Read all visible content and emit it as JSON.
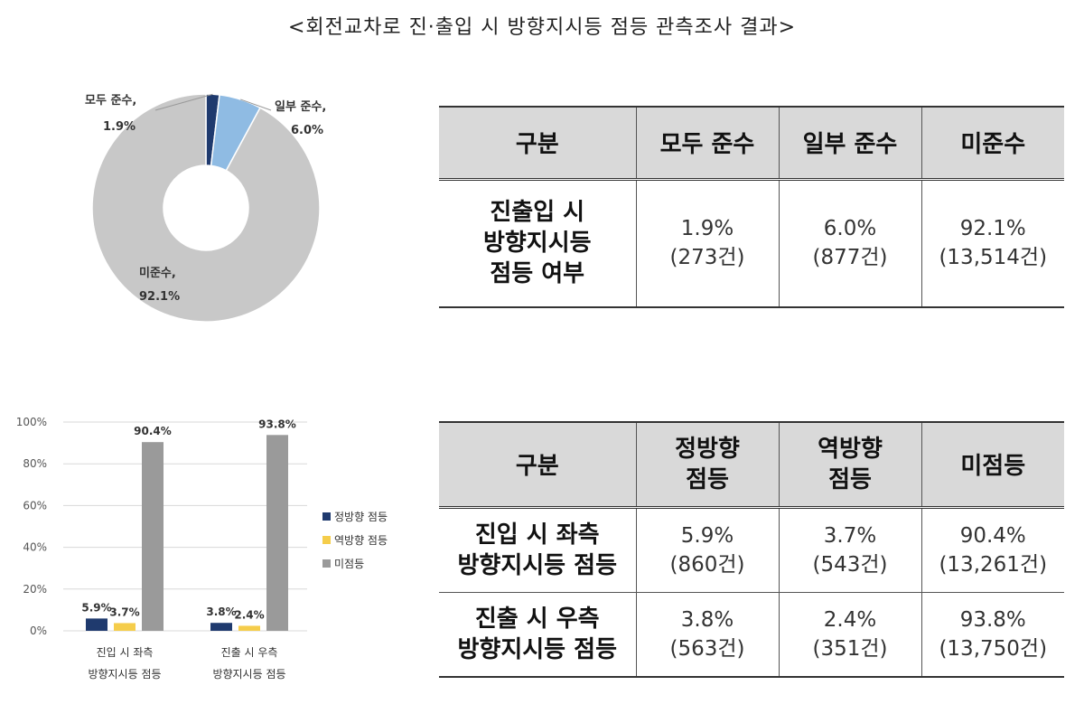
{
  "title": "<회전교차로 진·출입 시 방향지시등 점등 관측조사 결과>",
  "chart_data": [
    {
      "type": "pie",
      "slices": [
        {
          "label": "모두 준수,",
          "pct_label": "1.9%",
          "value": 1.9,
          "color": "#1f3a6e"
        },
        {
          "label": "일부 준수,",
          "pct_label": "6.0%",
          "value": 6.0,
          "color": "#8fbbe3"
        },
        {
          "label": "미준수,",
          "pct_label": "92.1%",
          "value": 92.1,
          "color": "#c8c8c8"
        }
      ],
      "donut": true
    },
    {
      "type": "bar",
      "categories": [
        {
          "line1": "진입 시 좌측",
          "line2": "방향지시등 점등"
        },
        {
          "line1": "진출 시 우측",
          "line2": "방향지시등 점등"
        }
      ],
      "series": [
        {
          "name": "정방향 점등",
          "values": [
            5.9,
            3.8
          ],
          "labels": [
            "5.9%",
            "3.8%"
          ],
          "color": "#1f3a6e"
        },
        {
          "name": "역방향 점등",
          "values": [
            3.7,
            2.4
          ],
          "labels": [
            "3.7%",
            "2.4%"
          ],
          "color": "#f5cd4b"
        },
        {
          "name": "미점등",
          "values": [
            90.4,
            93.8
          ],
          "labels": [
            "90.4%",
            "93.8%"
          ],
          "color": "#9a9a9a"
        }
      ],
      "ylim": [
        0,
        100
      ],
      "yticks": [
        "100%",
        "80%",
        "60%",
        "40%",
        "20%",
        "0%"
      ],
      "ytick_values": [
        100,
        80,
        60,
        40,
        20,
        0
      ],
      "grid": true,
      "legend": "right"
    }
  ],
  "table1": {
    "headers": [
      "구분",
      "모두 준수",
      "일부 준수",
      "미준수"
    ],
    "row": {
      "head": [
        "진출입 시",
        "방향지시등",
        "점등 여부"
      ],
      "cells": [
        [
          "1.9%",
          "(273건)"
        ],
        [
          "6.0%",
          "(877건)"
        ],
        [
          "92.1%",
          "(13,514건)"
        ]
      ]
    }
  },
  "table2": {
    "headers": [
      [
        "구분"
      ],
      [
        "정방향",
        "점등"
      ],
      [
        "역방향",
        "점등"
      ],
      [
        "미점등"
      ]
    ],
    "rows": [
      {
        "head": [
          "진입 시 좌측",
          "방향지시등 점등"
        ],
        "cells": [
          [
            "5.9%",
            "(860건)"
          ],
          [
            "3.7%",
            "(543건)"
          ],
          [
            "90.4%",
            "(13,261건)"
          ]
        ]
      },
      {
        "head": [
          "진출 시 우측",
          "방향지시등 점등"
        ],
        "cells": [
          [
            "3.8%",
            "(563건)"
          ],
          [
            "2.4%",
            "(351건)"
          ],
          [
            "93.8%",
            "(13,750건)"
          ]
        ]
      }
    ]
  }
}
